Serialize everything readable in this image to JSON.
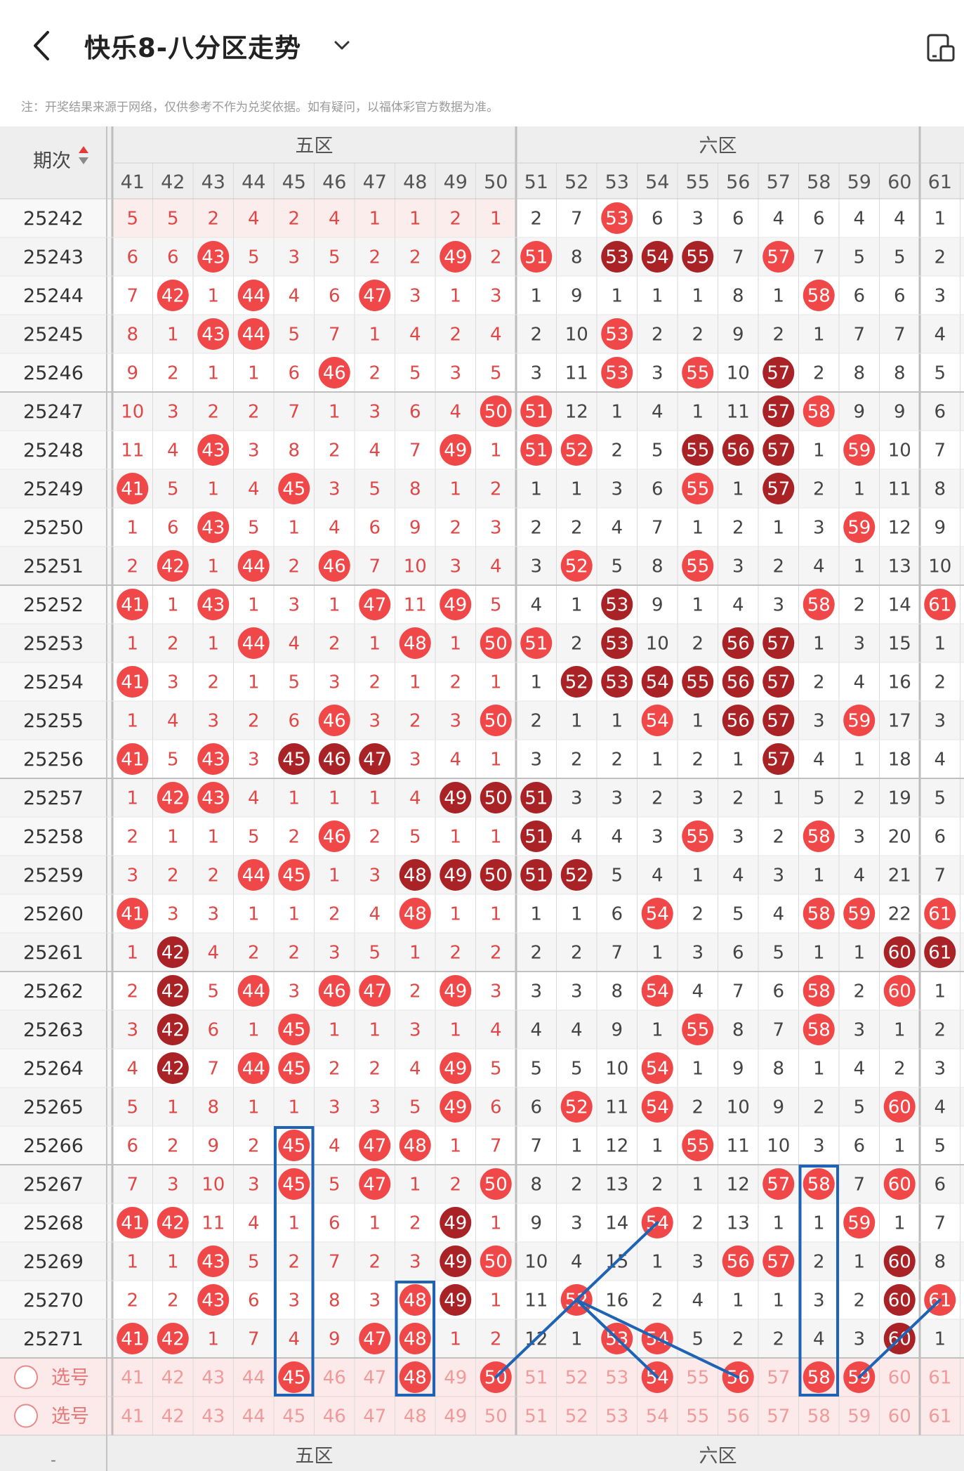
{
  "header": {
    "title": "快乐8-八分区走势",
    "back_icon": "chevron-left-icon",
    "dropdown_icon": "chevron-down-icon",
    "right_icon": "layout-toggle-icon"
  },
  "notice": "注：开奖结果来源于网络，仅供参考不作为兑奖依据。如有疑问，以福体彩官方数据为准。",
  "colors": {
    "red": "#F04848",
    "dark": "#A82226",
    "pickRed": "#F09A9A",
    "blue": "#1E63B4",
    "grid": "#D0D0D0",
    "headerBg": "#EEEEEE"
  },
  "table": {
    "period_label": "期次",
    "sort_icon": "sort-updown-icon",
    "zones": [
      {
        "label": "五区",
        "start": 41,
        "end": 50
      },
      {
        "label": "六区",
        "start": 51,
        "end": 60
      }
    ],
    "columns": [
      41,
      42,
      43,
      44,
      45,
      46,
      47,
      48,
      49,
      50,
      51,
      52,
      53,
      54,
      55,
      56,
      57,
      58,
      59,
      60,
      61
    ],
    "rows": [
      {
        "p": "25242",
        "c": [
          "5",
          "5",
          "2",
          "4",
          "2",
          "4",
          "1",
          "1",
          "2",
          "1",
          "2",
          "7",
          "53",
          "6",
          "3",
          "6",
          "4",
          "6",
          "4",
          "4",
          "1"
        ]
      },
      {
        "p": "25243",
        "c": [
          "6",
          "6",
          "43",
          "5",
          "3",
          "5",
          "2",
          "2",
          "49",
          "2",
          "51",
          "8",
          "53d",
          "54d",
          "55d",
          "7",
          "57",
          "7",
          "5",
          "5",
          "2"
        ]
      },
      {
        "p": "25244",
        "c": [
          "7",
          "42",
          "1",
          "44",
          "4",
          "6",
          "47",
          "3",
          "1",
          "3",
          "1",
          "9",
          "1",
          "1",
          "1",
          "8",
          "1",
          "58",
          "6",
          "6",
          "3"
        ]
      },
      {
        "p": "25245",
        "c": [
          "8",
          "1",
          "43",
          "44",
          "5",
          "7",
          "1",
          "4",
          "2",
          "4",
          "2",
          "10",
          "53",
          "2",
          "2",
          "9",
          "2",
          "1",
          "7",
          "7",
          "4"
        ]
      },
      {
        "p": "25246",
        "c": [
          "9",
          "2",
          "1",
          "1",
          "6",
          "46",
          "2",
          "5",
          "3",
          "5",
          "3",
          "11",
          "53",
          "3",
          "55",
          "10",
          "57d",
          "2",
          "8",
          "8",
          "5"
        ]
      },
      {
        "p": "25247",
        "c": [
          "10",
          "3",
          "2",
          "2",
          "7",
          "1",
          "3",
          "6",
          "4",
          "50",
          "51",
          "12",
          "1",
          "4",
          "1",
          "11",
          "57d",
          "58",
          "9",
          "9",
          "6"
        ]
      },
      {
        "p": "25248",
        "c": [
          "11",
          "4",
          "43",
          "3",
          "8",
          "2",
          "4",
          "7",
          "49",
          "1",
          "51",
          "52",
          "2",
          "5",
          "55d",
          "56d",
          "57d",
          "1",
          "59",
          "10",
          "7"
        ]
      },
      {
        "p": "25249",
        "c": [
          "41",
          "5",
          "1",
          "4",
          "45",
          "3",
          "5",
          "8",
          "1",
          "2",
          "1",
          "1",
          "3",
          "6",
          "55",
          "1",
          "57d",
          "2",
          "1",
          "11",
          "8"
        ]
      },
      {
        "p": "25250",
        "c": [
          "1",
          "6",
          "43",
          "5",
          "1",
          "4",
          "6",
          "9",
          "2",
          "3",
          "2",
          "2",
          "4",
          "7",
          "1",
          "2",
          "1",
          "3",
          "59",
          "12",
          "9"
        ]
      },
      {
        "p": "25251",
        "c": [
          "2",
          "42",
          "1",
          "44",
          "2",
          "46",
          "7",
          "10",
          "3",
          "4",
          "3",
          "52",
          "5",
          "8",
          "55",
          "3",
          "2",
          "4",
          "1",
          "13",
          "10"
        ]
      },
      {
        "p": "25252",
        "c": [
          "41",
          "1",
          "43",
          "1",
          "3",
          "1",
          "47",
          "11",
          "49",
          "5",
          "4",
          "1",
          "53d",
          "9",
          "1",
          "4",
          "3",
          "58",
          "2",
          "14",
          "61"
        ]
      },
      {
        "p": "25253",
        "c": [
          "1",
          "2",
          "1",
          "44",
          "4",
          "2",
          "1",
          "48",
          "1",
          "50",
          "51",
          "2",
          "53d",
          "10",
          "2",
          "56d",
          "57d",
          "1",
          "3",
          "15",
          "1"
        ]
      },
      {
        "p": "25254",
        "c": [
          "41",
          "3",
          "2",
          "1",
          "5",
          "3",
          "2",
          "1",
          "2",
          "1",
          "1",
          "52d",
          "53d",
          "54d",
          "55d",
          "56d",
          "57d",
          "2",
          "4",
          "16",
          "2"
        ]
      },
      {
        "p": "25255",
        "c": [
          "1",
          "4",
          "3",
          "2",
          "6",
          "46",
          "3",
          "2",
          "3",
          "50",
          "2",
          "1",
          "1",
          "54",
          "1",
          "56d",
          "57d",
          "3",
          "59",
          "17",
          "3"
        ]
      },
      {
        "p": "25256",
        "c": [
          "41",
          "5",
          "43",
          "3",
          "45d",
          "46d",
          "47d",
          "3",
          "4",
          "1",
          "3",
          "2",
          "2",
          "1",
          "2",
          "1",
          "57d",
          "4",
          "1",
          "18",
          "4"
        ]
      },
      {
        "p": "25257",
        "c": [
          "1",
          "42",
          "43",
          "4",
          "1",
          "1",
          "1",
          "4",
          "49d",
          "50d",
          "51d",
          "3",
          "3",
          "2",
          "3",
          "2",
          "1",
          "5",
          "2",
          "19",
          "5"
        ]
      },
      {
        "p": "25258",
        "c": [
          "2",
          "1",
          "1",
          "5",
          "2",
          "46",
          "2",
          "5",
          "1",
          "1",
          "51d",
          "4",
          "4",
          "3",
          "55",
          "3",
          "2",
          "58",
          "3",
          "20",
          "6"
        ]
      },
      {
        "p": "25259",
        "c": [
          "3",
          "2",
          "2",
          "44",
          "45",
          "1",
          "3",
          "48d",
          "49d",
          "50d",
          "51d",
          "52d",
          "5",
          "4",
          "1",
          "4",
          "3",
          "1",
          "4",
          "21",
          "7"
        ]
      },
      {
        "p": "25260",
        "c": [
          "41",
          "3",
          "3",
          "1",
          "1",
          "2",
          "4",
          "48",
          "1",
          "1",
          "1",
          "1",
          "6",
          "54",
          "2",
          "5",
          "4",
          "58",
          "59",
          "22",
          "61"
        ]
      },
      {
        "p": "25261",
        "c": [
          "1",
          "42d",
          "4",
          "2",
          "2",
          "3",
          "5",
          "1",
          "2",
          "2",
          "2",
          "2",
          "7",
          "1",
          "3",
          "6",
          "5",
          "1",
          "1",
          "60d",
          "61d"
        ]
      },
      {
        "p": "25262",
        "c": [
          "2",
          "42d",
          "5",
          "44",
          "3",
          "46",
          "47",
          "2",
          "49",
          "3",
          "3",
          "3",
          "8",
          "54",
          "4",
          "7",
          "6",
          "58",
          "2",
          "60",
          "1"
        ]
      },
      {
        "p": "25263",
        "c": [
          "3",
          "42d",
          "6",
          "1",
          "45",
          "1",
          "1",
          "3",
          "1",
          "4",
          "4",
          "4",
          "9",
          "1",
          "55",
          "8",
          "7",
          "58",
          "3",
          "1",
          "2"
        ]
      },
      {
        "p": "25264",
        "c": [
          "4",
          "42d",
          "7",
          "44",
          "45",
          "2",
          "2",
          "4",
          "49",
          "5",
          "5",
          "5",
          "10",
          "54",
          "1",
          "9",
          "8",
          "1",
          "4",
          "2",
          "3"
        ]
      },
      {
        "p": "25265",
        "c": [
          "5",
          "1",
          "8",
          "1",
          "1",
          "3",
          "3",
          "5",
          "49",
          "6",
          "6",
          "52",
          "11",
          "54",
          "2",
          "10",
          "9",
          "2",
          "5",
          "60",
          "4"
        ]
      },
      {
        "p": "25266",
        "c": [
          "6",
          "2",
          "9",
          "2",
          "45",
          "4",
          "47",
          "48",
          "1",
          "7",
          "7",
          "1",
          "12",
          "1",
          "55",
          "11",
          "10",
          "3",
          "6",
          "1",
          "5"
        ]
      },
      {
        "p": "25267",
        "c": [
          "7",
          "3",
          "10",
          "3",
          "45",
          "5",
          "47",
          "1",
          "2",
          "50",
          "8",
          "2",
          "13",
          "2",
          "1",
          "12",
          "57",
          "58",
          "7",
          "60",
          "6"
        ]
      },
      {
        "p": "25268",
        "c": [
          "41",
          "42",
          "11",
          "4",
          "1",
          "6",
          "1",
          "2",
          "49d",
          "1",
          "9",
          "3",
          "14",
          "54",
          "2",
          "13",
          "1",
          "1",
          "59",
          "1",
          "7"
        ]
      },
      {
        "p": "25269",
        "c": [
          "1",
          "1",
          "43",
          "5",
          "2",
          "7",
          "2",
          "3",
          "49d",
          "50",
          "10",
          "4",
          "15",
          "1",
          "3",
          "56",
          "57",
          "2",
          "1",
          "60d",
          "8"
        ]
      },
      {
        "p": "25270",
        "c": [
          "2",
          "2",
          "43",
          "6",
          "3",
          "8",
          "3",
          "48",
          "49d",
          "1",
          "11",
          "52",
          "16",
          "2",
          "4",
          "1",
          "1",
          "3",
          "2",
          "60d",
          "61"
        ]
      },
      {
        "p": "25271",
        "c": [
          "41",
          "42",
          "1",
          "7",
          "4",
          "9",
          "47",
          "48",
          "1",
          "2",
          "12",
          "1",
          "53",
          "54",
          "5",
          "2",
          "2",
          "4",
          "3",
          "60d",
          "1"
        ]
      }
    ],
    "pick_rows": [
      {
        "label": "选号",
        "selected": [
          45,
          48,
          50,
          54,
          56,
          58,
          59
        ]
      },
      {
        "label": "选号",
        "selected": []
      }
    ],
    "footer_zones": [
      "五区",
      "六区"
    ],
    "footer_period_fragment": "-"
  }
}
